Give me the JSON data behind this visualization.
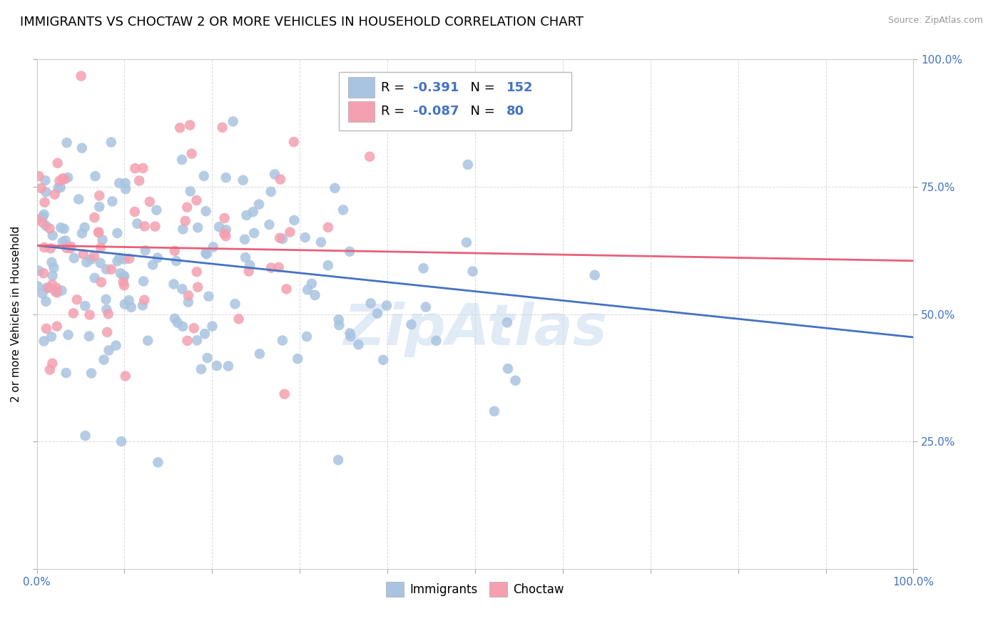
{
  "title": "IMMIGRANTS VS CHOCTAW 2 OR MORE VEHICLES IN HOUSEHOLD CORRELATION CHART",
  "source": "Source: ZipAtlas.com",
  "ylabel": "2 or more Vehicles in Household",
  "xlim": [
    0,
    1.0
  ],
  "ylim": [
    0,
    1.0
  ],
  "xticks": [
    0.0,
    0.1,
    0.2,
    0.3,
    0.4,
    0.5,
    0.6,
    0.7,
    0.8,
    0.9,
    1.0
  ],
  "yticks": [
    0.0,
    0.25,
    0.5,
    0.75,
    1.0
  ],
  "xticklabels_show": [
    "0.0%",
    "100.0%"
  ],
  "yticklabels_right": [
    "",
    "25.0%",
    "50.0%",
    "75.0%",
    "100.0%"
  ],
  "legend_val1": "-0.391",
  "legend_nval1": "152",
  "legend_val2": "-0.087",
  "legend_nval2": "80",
  "immigrant_color": "#a8c4e0",
  "choctaw_color": "#f4a0b0",
  "immigrant_line_color": "#4472c4",
  "choctaw_line_color": "#e8607a",
  "background_color": "#ffffff",
  "grid_color": "#d0d0d0",
  "title_fontsize": 13,
  "axis_label_fontsize": 11,
  "tick_label_color": "#4472c4",
  "watermark": "ZipAtlas",
  "R1": -0.391,
  "N1": 152,
  "R2": -0.087,
  "N2": 80,
  "blue_line_start_y": 0.635,
  "blue_line_end_y": 0.455,
  "pink_line_start_y": 0.635,
  "pink_line_end_y": 0.605
}
